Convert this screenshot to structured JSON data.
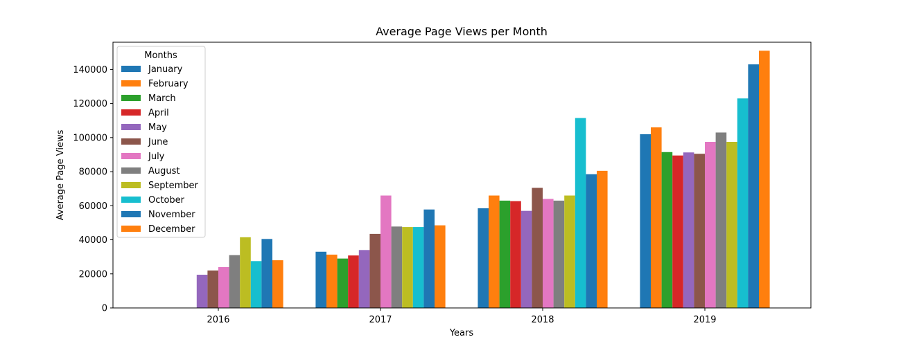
{
  "chart_data": {
    "type": "bar",
    "title": "Average Page Views per Month",
    "xlabel": "Years",
    "ylabel": "Average Page Views",
    "categories": [
      "2016",
      "2017",
      "2018",
      "2019"
    ],
    "ylim": [
      0,
      156000
    ],
    "yticks": [
      0,
      20000,
      40000,
      60000,
      80000,
      100000,
      120000,
      140000
    ],
    "grid": false,
    "legend": {
      "title": "Months",
      "position": "top-left"
    },
    "series": [
      {
        "name": "January",
        "color": "#1f77b4",
        "values": [
          null,
          33000,
          58500,
          102000
        ]
      },
      {
        "name": "February",
        "color": "#ff7f0e",
        "values": [
          null,
          31300,
          66000,
          106000
        ]
      },
      {
        "name": "March",
        "color": "#2ca02c",
        "values": [
          null,
          29000,
          63000,
          91500
        ]
      },
      {
        "name": "April",
        "color": "#d62728",
        "values": [
          null,
          30800,
          62700,
          89500
        ]
      },
      {
        "name": "May",
        "color": "#9467bd",
        "values": [
          19500,
          34000,
          57000,
          91300
        ]
      },
      {
        "name": "June",
        "color": "#8c564b",
        "values": [
          22000,
          43500,
          70500,
          90500
        ]
      },
      {
        "name": "July",
        "color": "#e377c2",
        "values": [
          24000,
          66000,
          64000,
          97500
        ]
      },
      {
        "name": "August",
        "color": "#7f7f7f",
        "values": [
          31000,
          47800,
          63000,
          103000
        ]
      },
      {
        "name": "September",
        "color": "#bcbd22",
        "values": [
          41500,
          47500,
          66000,
          97500
        ]
      },
      {
        "name": "October",
        "color": "#17becf",
        "values": [
          27500,
          47500,
          111500,
          123000
        ]
      },
      {
        "name": "November",
        "color": "#1f77b4",
        "values": [
          40500,
          57800,
          78500,
          143000
        ]
      },
      {
        "name": "December",
        "color": "#ff7f0e",
        "values": [
          28000,
          48500,
          80500,
          151000
        ]
      }
    ]
  }
}
